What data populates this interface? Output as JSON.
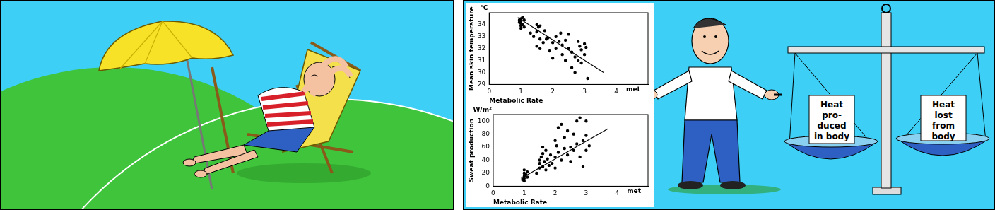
{
  "chart_data": [
    {
      "type": "scatter",
      "y_unit": "°C",
      "y_label": "Mean skin temperature",
      "x_label": "Metabolic Rate",
      "x_unit": "met",
      "xlim": [
        0,
        5
      ],
      "xticks": [
        0,
        1,
        2,
        3,
        4
      ],
      "ylim": [
        29,
        35
      ],
      "yticks": [
        29,
        30,
        31,
        32,
        33,
        34
      ],
      "grid": false,
      "series": [
        {
          "type": "scatter",
          "marker": "circle",
          "color": "#000000",
          "x": [
            1.0,
            1.0,
            1.0,
            1.0,
            1.05,
            0.95,
            1.1,
            1.0,
            1.05,
            1.1,
            0.95,
            1.3,
            1.4,
            1.5,
            1.55,
            1.6,
            1.5,
            1.6,
            1.7,
            1.6,
            1.5,
            1.75,
            1.8,
            1.9,
            1.85,
            2.0,
            2.0,
            2.1,
            2.1,
            2.2,
            2.25,
            2.3,
            2.3,
            2.4,
            2.4,
            2.5,
            2.5,
            2.6,
            2.6,
            2.7,
            2.8,
            2.85,
            2.9,
            2.9,
            3.0,
            3.0,
            3.05,
            3.1,
            2.7,
            2.8
          ],
          "values": [
            34.5,
            34.3,
            34.1,
            33.9,
            34.6,
            34.2,
            34.4,
            33.7,
            34.0,
            33.8,
            34.4,
            33.3,
            33.0,
            34.0,
            33.8,
            33.9,
            33.4,
            32.8,
            32.5,
            32.0,
            32.2,
            33.5,
            32.8,
            31.8,
            32.9,
            32.5,
            31.2,
            33.0,
            32.0,
            32.6,
            33.3,
            32.3,
            31.5,
            32.7,
            31.0,
            33.2,
            32.0,
            31.7,
            30.4,
            31.3,
            32.6,
            32.2,
            31.9,
            30.8,
            32.4,
            31.5,
            32.1,
            29.5,
            30.0,
            31.0
          ]
        },
        {
          "type": "line",
          "line_style": "solid",
          "color": "#000000",
          "x": [
            0.9,
            3.6
          ],
          "values": [
            34.6,
            30.0
          ]
        }
      ]
    },
    {
      "type": "scatter",
      "y_unit": "W/m²",
      "y_label": "Sweat production",
      "x_label": "Metabolic Rate",
      "x_unit": "met",
      "xlim": [
        0,
        5
      ],
      "xticks": [
        0,
        1,
        2,
        3,
        4
      ],
      "ylim": [
        0,
        110
      ],
      "yticks": [
        0,
        20,
        40,
        60,
        80,
        100
      ],
      "grid": false,
      "series": [
        {
          "type": "scatter",
          "marker": "circle",
          "color": "#000000",
          "x": [
            1.0,
            1.0,
            1.0,
            1.0,
            1.05,
            0.95,
            1.0,
            1.1,
            1.1,
            1.4,
            1.5,
            1.5,
            1.5,
            1.55,
            1.6,
            1.6,
            1.6,
            1.65,
            1.7,
            1.7,
            1.75,
            1.8,
            1.85,
            1.9,
            2.0,
            2.0,
            2.0,
            2.05,
            2.1,
            2.1,
            2.2,
            2.2,
            2.3,
            2.3,
            2.4,
            2.4,
            2.5,
            2.5,
            2.6,
            2.6,
            2.7,
            2.7,
            2.8,
            2.8,
            2.9,
            2.9,
            3.0,
            3.0,
            3.0,
            3.1
          ],
          "values": [
            8,
            12,
            15,
            20,
            18,
            10,
            25,
            14,
            22,
            20,
            28,
            35,
            40,
            45,
            30,
            50,
            60,
            38,
            25,
            55,
            42,
            32,
            48,
            35,
            28,
            45,
            70,
            62,
            90,
            52,
            95,
            40,
            75,
            58,
            48,
            85,
            60,
            38,
            80,
            55,
            100,
            65,
            105,
            45,
            70,
            30,
            100,
            78,
            55,
            62
          ]
        },
        {
          "type": "line",
          "line_style": "solid",
          "color": "#000000",
          "x": [
            0.9,
            3.7
          ],
          "values": [
            12,
            88
          ]
        }
      ]
    }
  ],
  "illustration": {
    "scale_left_label": [
      "Heat",
      "pro-",
      "duced",
      "in body"
    ],
    "scale_right_label": [
      "Heat",
      "lost",
      "from",
      "body"
    ]
  }
}
